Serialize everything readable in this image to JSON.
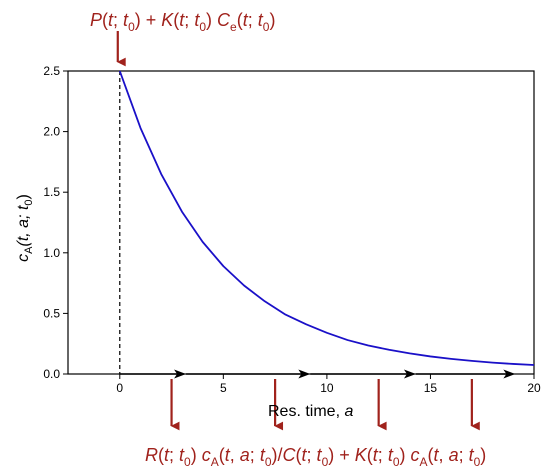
{
  "chart_data": {
    "type": "line",
    "title": "",
    "xlabel": {
      "text": "Res. time, ",
      "var": "a"
    },
    "ylabel": {
      "c": "c",
      "sub": "A",
      "args": "(t, a; t",
      "sub0": "0",
      "close": ")"
    },
    "xlim": [
      -2.5,
      20
    ],
    "ylim": [
      0,
      2.5
    ],
    "xticks": [
      0,
      5,
      10,
      15,
      20
    ],
    "yticks": [
      0.0,
      0.5,
      1.0,
      1.5,
      2.0,
      2.5
    ],
    "ytick_labels": [
      "0.0",
      "0.5",
      "1.0",
      "1.5",
      "2.0",
      "2.5"
    ],
    "grid": false,
    "series": [
      {
        "x": [
          0,
          1,
          2,
          3,
          4,
          5,
          6,
          7,
          8,
          9,
          10,
          11,
          12,
          13,
          14,
          15,
          16,
          17,
          18,
          19,
          20
        ],
        "y": [
          2.5,
          2.03,
          1.65,
          1.34,
          1.09,
          0.89,
          0.73,
          0.6,
          0.49,
          0.41,
          0.34,
          0.28,
          0.235,
          0.2,
          0.17,
          0.145,
          0.125,
          0.108,
          0.094,
          0.083,
          0.074
        ],
        "color": "#1a10c8"
      }
    ],
    "dashed_line": {
      "x": 0,
      "y0": 0,
      "y1": 2.5
    },
    "flow_arrows_x": [
      2.5,
      7.5,
      12.5,
      17.0
    ],
    "flow_arrow_markers_x": [
      3.2,
      9.2,
      14.3,
      19.1
    ],
    "top_arrow_x": 0,
    "bottom_arrows_x": [
      5.0,
      10.0,
      15.0,
      20.0
    ],
    "colors": {
      "curve": "#1a10c8",
      "annotation": "#a0221c",
      "axis": "#000000"
    }
  },
  "annotations": {
    "top": [
      {
        "t": "P",
        "i": true
      },
      {
        "t": "("
      },
      {
        "t": "t",
        "i": true
      },
      {
        "t": "; "
      },
      {
        "t": "t",
        "i": true
      },
      {
        "t": "0",
        "sub": true
      },
      {
        "t": ") + "
      },
      {
        "t": "K",
        "i": true
      },
      {
        "t": "("
      },
      {
        "t": "t",
        "i": true
      },
      {
        "t": "; "
      },
      {
        "t": "t",
        "i": true
      },
      {
        "t": "0",
        "sub": true
      },
      {
        "t": ") "
      },
      {
        "t": "C",
        "i": true
      },
      {
        "t": "e",
        "sub": true
      },
      {
        "t": "("
      },
      {
        "t": "t",
        "i": true
      },
      {
        "t": "; "
      },
      {
        "t": "t",
        "i": true
      },
      {
        "t": "0",
        "sub": true
      },
      {
        "t": ")"
      }
    ],
    "bottom": [
      {
        "t": "R",
        "i": true
      },
      {
        "t": "("
      },
      {
        "t": "t",
        "i": true
      },
      {
        "t": "; "
      },
      {
        "t": "t",
        "i": true
      },
      {
        "t": "0",
        "sub": true
      },
      {
        "t": ") "
      },
      {
        "t": "c",
        "i": true
      },
      {
        "t": "A",
        "sub": true
      },
      {
        "t": "("
      },
      {
        "t": "t",
        "i": true
      },
      {
        "t": ", "
      },
      {
        "t": "a",
        "i": true
      },
      {
        "t": "; "
      },
      {
        "t": "t",
        "i": true
      },
      {
        "t": "0",
        "sub": true
      },
      {
        "t": ")/"
      },
      {
        "t": "C",
        "i": true
      },
      {
        "t": "("
      },
      {
        "t": "t",
        "i": true
      },
      {
        "t": "; "
      },
      {
        "t": "t",
        "i": true
      },
      {
        "t": "0",
        "sub": true
      },
      {
        "t": ") + "
      },
      {
        "t": "K",
        "i": true
      },
      {
        "t": "("
      },
      {
        "t": "t",
        "i": true
      },
      {
        "t": "; "
      },
      {
        "t": "t",
        "i": true
      },
      {
        "t": "0",
        "sub": true
      },
      {
        "t": ") "
      },
      {
        "t": "c",
        "i": true
      },
      {
        "t": "A",
        "sub": true
      },
      {
        "t": "("
      },
      {
        "t": "t",
        "i": true
      },
      {
        "t": ", "
      },
      {
        "t": "a",
        "i": true
      },
      {
        "t": "; "
      },
      {
        "t": "t",
        "i": true
      },
      {
        "t": "0",
        "sub": true
      },
      {
        "t": ")"
      }
    ]
  }
}
